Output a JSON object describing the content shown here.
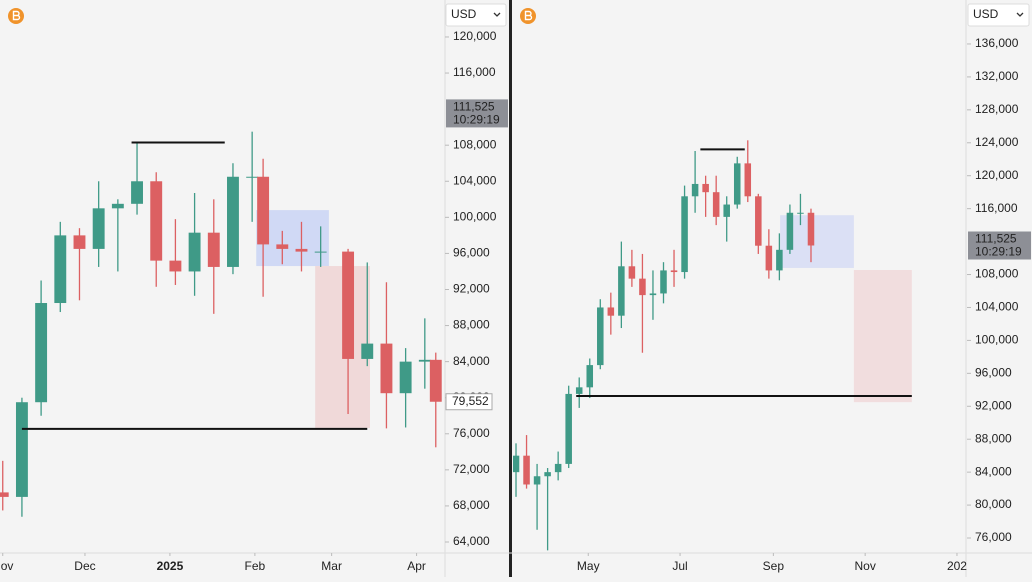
{
  "chart_data": [
    {
      "type": "candlestick",
      "currency": "USD",
      "up_color": "#3f9a87",
      "down_color": "#dc6062",
      "x": [
        0,
        7,
        14,
        21,
        28,
        35,
        42,
        49,
        56,
        63,
        70,
        77,
        84,
        91,
        95,
        102,
        109,
        116,
        126,
        133,
        140,
        147,
        154,
        158
      ],
      "open": [
        69500,
        69000,
        79500,
        90500,
        98000,
        96500,
        101000,
        101500,
        104000,
        95200,
        94000,
        98300,
        94500,
        104500,
        104500,
        97000,
        96500,
        96200,
        96200,
        84300,
        86000,
        80500,
        84000,
        84200
      ],
      "high": [
        73000,
        80000,
        93000,
        99500,
        98800,
        104000,
        102000,
        108300,
        105000,
        99800,
        102700,
        102000,
        106000,
        109500,
        106500,
        98500,
        99500,
        99000,
        96500,
        95000,
        92800,
        85500,
        88800,
        85000
      ],
      "low": [
        67500,
        66800,
        78000,
        89500,
        90800,
        94500,
        94000,
        100300,
        92300,
        92500,
        91300,
        89300,
        93700,
        99500,
        91200,
        94800,
        94000,
        94500,
        78200,
        83500,
        76600,
        76700,
        81000,
        74500
      ],
      "close": [
        69000,
        79500,
        90500,
        98000,
        96500,
        101000,
        101500,
        104000,
        95200,
        94000,
        98300,
        94500,
        104500,
        104500,
        97000,
        96500,
        96200,
        96200,
        84300,
        86000,
        80500,
        84000,
        84200,
        79552
      ],
      "xlim": [
        -1,
        161
      ],
      "xticks": [
        {
          "value": 0,
          "label": "Nov"
        },
        {
          "value": 30,
          "label": "Dec"
        },
        {
          "value": 61,
          "label": "2025",
          "bold": true
        },
        {
          "value": 92,
          "label": "Feb"
        },
        {
          "value": 120,
          "label": "Mar"
        },
        {
          "value": 151,
          "label": "Apr"
        }
      ],
      "ylim": [
        62780,
        124100
      ],
      "yticks": [
        {
          "value": 64000,
          "label": "64,000"
        },
        {
          "value": 68000,
          "label": "68,000"
        },
        {
          "value": 72000,
          "label": "72,000"
        },
        {
          "value": 76000,
          "label": "76,000"
        },
        {
          "value": 80000,
          "label": "80,000"
        },
        {
          "value": 84000,
          "label": "84,000"
        },
        {
          "value": 88000,
          "label": "88,000"
        },
        {
          "value": 92000,
          "label": "92,000"
        },
        {
          "value": 96000,
          "label": "96,000"
        },
        {
          "value": 100000,
          "label": "100,000"
        },
        {
          "value": 104000,
          "label": "104,000"
        },
        {
          "value": 108000,
          "label": "108,000"
        },
        {
          "value": 116000,
          "label": "116,000"
        },
        {
          "value": 120000,
          "label": "120,000"
        }
      ],
      "levels": [
        {
          "x": [
            47,
            81
          ],
          "y": 108300
        },
        {
          "x": [
            7,
            133
          ],
          "y": 76550
        }
      ],
      "boxes": [
        {
          "x": [
            92.5,
            119
          ],
          "y": [
            94600,
            100800
          ],
          "color": "#c9d3f5"
        },
        {
          "x": [
            114,
            134
          ],
          "y": [
            76650,
            94600
          ],
          "color": "#efd3d4"
        }
      ],
      "price_labels": [
        {
          "value": 111525,
          "label": "111,525",
          "time": "10:29:19",
          "style": "gray"
        },
        {
          "value": 79552,
          "label": "79,552",
          "style": "outline"
        }
      ]
    },
    {
      "type": "candlestick",
      "currency": "USD",
      "up_color": "#3f9a87",
      "down_color": "#dc6062",
      "x": [
        -18,
        -11,
        -4,
        3,
        10,
        17,
        24,
        31,
        38,
        45,
        52,
        59,
        66,
        73,
        80,
        87,
        94,
        101,
        108,
        115,
        122,
        129,
        136,
        143,
        150,
        157,
        164,
        171,
        178
      ],
      "open": [
        84000,
        86000,
        82500,
        83500,
        84000,
        85000,
        93500,
        94300,
        97000,
        104000,
        103000,
        109000,
        107500,
        105500,
        105700,
        108500,
        108300,
        117500,
        119000,
        118000,
        115000,
        116500,
        121500,
        117500,
        111500,
        108500,
        111000,
        115500,
        115500
      ],
      "high": [
        87500,
        88500,
        85000,
        84500,
        86500,
        94500,
        95500,
        97800,
        105000,
        105800,
        112000,
        111000,
        110500,
        108500,
        109500,
        111000,
        118800,
        123000,
        120000,
        120000,
        117500,
        122300,
        124300,
        117800,
        113500,
        113000,
        116500,
        117800,
        116000
      ],
      "low": [
        81000,
        82000,
        77000,
        74500,
        83000,
        84500,
        91800,
        93000,
        96500,
        100700,
        101500,
        106500,
        98500,
        102500,
        104500,
        106500,
        107500,
        115500,
        115000,
        114000,
        112000,
        116000,
        116800,
        110500,
        107500,
        107300,
        110500,
        114000,
        109500
      ],
      "close": [
        86000,
        82500,
        83500,
        84000,
        85000,
        93500,
        94300,
        97000,
        104000,
        103000,
        109000,
        107500,
        105500,
        105700,
        108500,
        108300,
        117500,
        119000,
        118000,
        115000,
        116500,
        121500,
        117500,
        111500,
        108500,
        111000,
        115500,
        115500,
        111525
      ],
      "xlim": [
        -20,
        281
      ],
      "xticks": [
        {
          "value": 30,
          "label": "May"
        },
        {
          "value": 91,
          "label": "Jul"
        },
        {
          "value": 153,
          "label": "Sep"
        },
        {
          "value": 214,
          "label": "Nov"
        },
        {
          "value": 275,
          "label": "202"
        }
      ],
      "ylim": [
        74180,
        141340
      ],
      "yticks": [
        {
          "value": 76000,
          "label": "76,000"
        },
        {
          "value": 80000,
          "label": "80,000"
        },
        {
          "value": 84000,
          "label": "84,000"
        },
        {
          "value": 88000,
          "label": "88,000"
        },
        {
          "value": 92000,
          "label": "92,000"
        },
        {
          "value": 96000,
          "label": "96,000"
        },
        {
          "value": 100000,
          "label": "100,000"
        },
        {
          "value": 104000,
          "label": "104,000"
        },
        {
          "value": 108000,
          "label": "108,000"
        },
        {
          "value": 116000,
          "label": "116,000"
        },
        {
          "value": 120000,
          "label": "120,000"
        },
        {
          "value": 124000,
          "label": "124,000"
        },
        {
          "value": 128000,
          "label": "128,000"
        },
        {
          "value": 132000,
          "label": "132,000"
        },
        {
          "value": 136000,
          "label": "136,000"
        }
      ],
      "levels": [
        {
          "x": [
            104.5,
            134
          ],
          "y": 123200
        },
        {
          "x": [
            22,
            245
          ],
          "y": 93250
        }
      ],
      "boxes": [
        {
          "x": [
            157.5,
            206.5
          ],
          "y": [
            108800,
            115200
          ],
          "color": "#d6dcf5"
        },
        {
          "x": [
            206.5,
            245
          ],
          "y": [
            92500,
            108550
          ],
          "color": "#f0d8d9"
        }
      ],
      "price_labels": [
        {
          "value": 111525,
          "label": "111,525",
          "time": "10:29:19",
          "style": "gray"
        }
      ]
    }
  ]
}
